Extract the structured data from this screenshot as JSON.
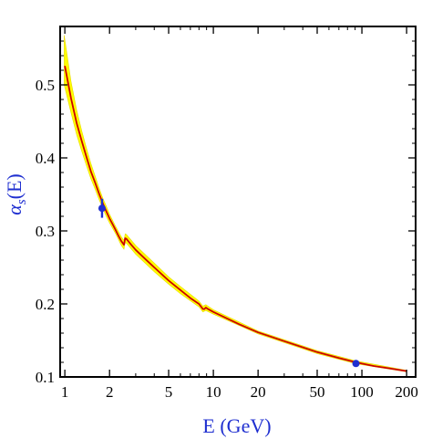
{
  "chart_data": {
    "type": "line",
    "xlabel": "E  (GeV)",
    "ylabel_symbol": "α",
    "ylabel_subscript": "s",
    "ylabel_arg": "(E)",
    "x_scale": "log",
    "xlim": [
      0.93,
      230
    ],
    "ylim": [
      0.1,
      0.58
    ],
    "x_ticks": [
      1,
      2,
      5,
      10,
      20,
      50,
      100,
      200
    ],
    "x_tick_labels": [
      "1",
      "2",
      "5",
      "10",
      "20",
      "50",
      "100",
      "200"
    ],
    "y_ticks": [
      0.1,
      0.2,
      0.3,
      0.4,
      0.5
    ],
    "y_tick_labels": [
      "0.1",
      "0.2",
      "0.3",
      "0.4",
      "0.5"
    ],
    "grid": false,
    "series": [
      {
        "kind": "central-curve",
        "color": "#cc0000",
        "points": [
          [
            1.0,
            0.526
          ],
          [
            1.1,
            0.482
          ],
          [
            1.2,
            0.448
          ],
          [
            1.3,
            0.423
          ],
          [
            1.4,
            0.401
          ],
          [
            1.5,
            0.381
          ],
          [
            1.6,
            0.366
          ],
          [
            1.7,
            0.351
          ],
          [
            1.8,
            0.338
          ],
          [
            1.9,
            0.327
          ],
          [
            2.0,
            0.317
          ],
          [
            2.1,
            0.309
          ],
          [
            2.2,
            0.301
          ],
          [
            2.3,
            0.293
          ],
          [
            2.4,
            0.286
          ],
          [
            2.5,
            0.281
          ],
          [
            2.55,
            0.29
          ],
          [
            2.6,
            0.289
          ],
          [
            2.8,
            0.281
          ],
          [
            3.0,
            0.274
          ],
          [
            3.5,
            0.261
          ],
          [
            4.0,
            0.25
          ],
          [
            5.0,
            0.232
          ],
          [
            6.0,
            0.219
          ],
          [
            7.0,
            0.208
          ],
          [
            8.0,
            0.2
          ],
          [
            8.5,
            0.193
          ],
          [
            8.7,
            0.193
          ],
          [
            8.9,
            0.195
          ],
          [
            9.2,
            0.193
          ],
          [
            10.0,
            0.189
          ],
          [
            15.0,
            0.172
          ],
          [
            20.0,
            0.161
          ],
          [
            30.0,
            0.149
          ],
          [
            50.0,
            0.134
          ],
          [
            70.0,
            0.126
          ],
          [
            91.2,
            0.12
          ],
          [
            120.0,
            0.115
          ],
          [
            150.0,
            0.112
          ],
          [
            200.0,
            0.108
          ]
        ]
      },
      {
        "kind": "uncertainty-band",
        "color": "#ffff00",
        "upper": [
          [
            0.99,
            0.568
          ],
          [
            1.1,
            0.505
          ],
          [
            1.2,
            0.466
          ],
          [
            1.3,
            0.437
          ],
          [
            1.4,
            0.413
          ],
          [
            1.5,
            0.392
          ],
          [
            1.6,
            0.375
          ],
          [
            1.7,
            0.359
          ],
          [
            1.8,
            0.345
          ],
          [
            1.9,
            0.334
          ],
          [
            2.0,
            0.323
          ],
          [
            2.2,
            0.306
          ],
          [
            2.4,
            0.292
          ],
          [
            2.5,
            0.287
          ],
          [
            2.55,
            0.296
          ],
          [
            2.6,
            0.295
          ],
          [
            3.0,
            0.28
          ],
          [
            4.0,
            0.256
          ],
          [
            5.0,
            0.237
          ],
          [
            6.0,
            0.224
          ],
          [
            8.0,
            0.204
          ],
          [
            8.5,
            0.197
          ],
          [
            8.9,
            0.199
          ],
          [
            10.0,
            0.192
          ],
          [
            20.0,
            0.163
          ],
          [
            50.0,
            0.136
          ],
          [
            91.2,
            0.122
          ],
          [
            200.0,
            0.109
          ]
        ],
        "lower": [
          [
            0.99,
            0.5
          ],
          [
            1.1,
            0.462
          ],
          [
            1.2,
            0.432
          ],
          [
            1.3,
            0.409
          ],
          [
            1.4,
            0.389
          ],
          [
            1.5,
            0.371
          ],
          [
            1.6,
            0.357
          ],
          [
            1.7,
            0.343
          ],
          [
            1.8,
            0.331
          ],
          [
            1.9,
            0.32
          ],
          [
            2.0,
            0.311
          ],
          [
            2.2,
            0.296
          ],
          [
            2.4,
            0.28
          ],
          [
            2.5,
            0.275
          ],
          [
            2.55,
            0.284
          ],
          [
            2.6,
            0.283
          ],
          [
            3.0,
            0.268
          ],
          [
            4.0,
            0.244
          ],
          [
            5.0,
            0.227
          ],
          [
            6.0,
            0.214
          ],
          [
            8.0,
            0.196
          ],
          [
            8.5,
            0.189
          ],
          [
            8.9,
            0.191
          ],
          [
            10.0,
            0.186
          ],
          [
            20.0,
            0.159
          ],
          [
            50.0,
            0.132
          ],
          [
            91.2,
            0.118
          ],
          [
            200.0,
            0.107
          ]
        ]
      },
      {
        "kind": "data-points",
        "color": "#1f2fd0",
        "points": [
          {
            "x": 1.78,
            "y": 0.331,
            "err": 0.013
          },
          {
            "x": 91.2,
            "y": 0.1184,
            "err": 0.0007
          }
        ]
      }
    ]
  }
}
